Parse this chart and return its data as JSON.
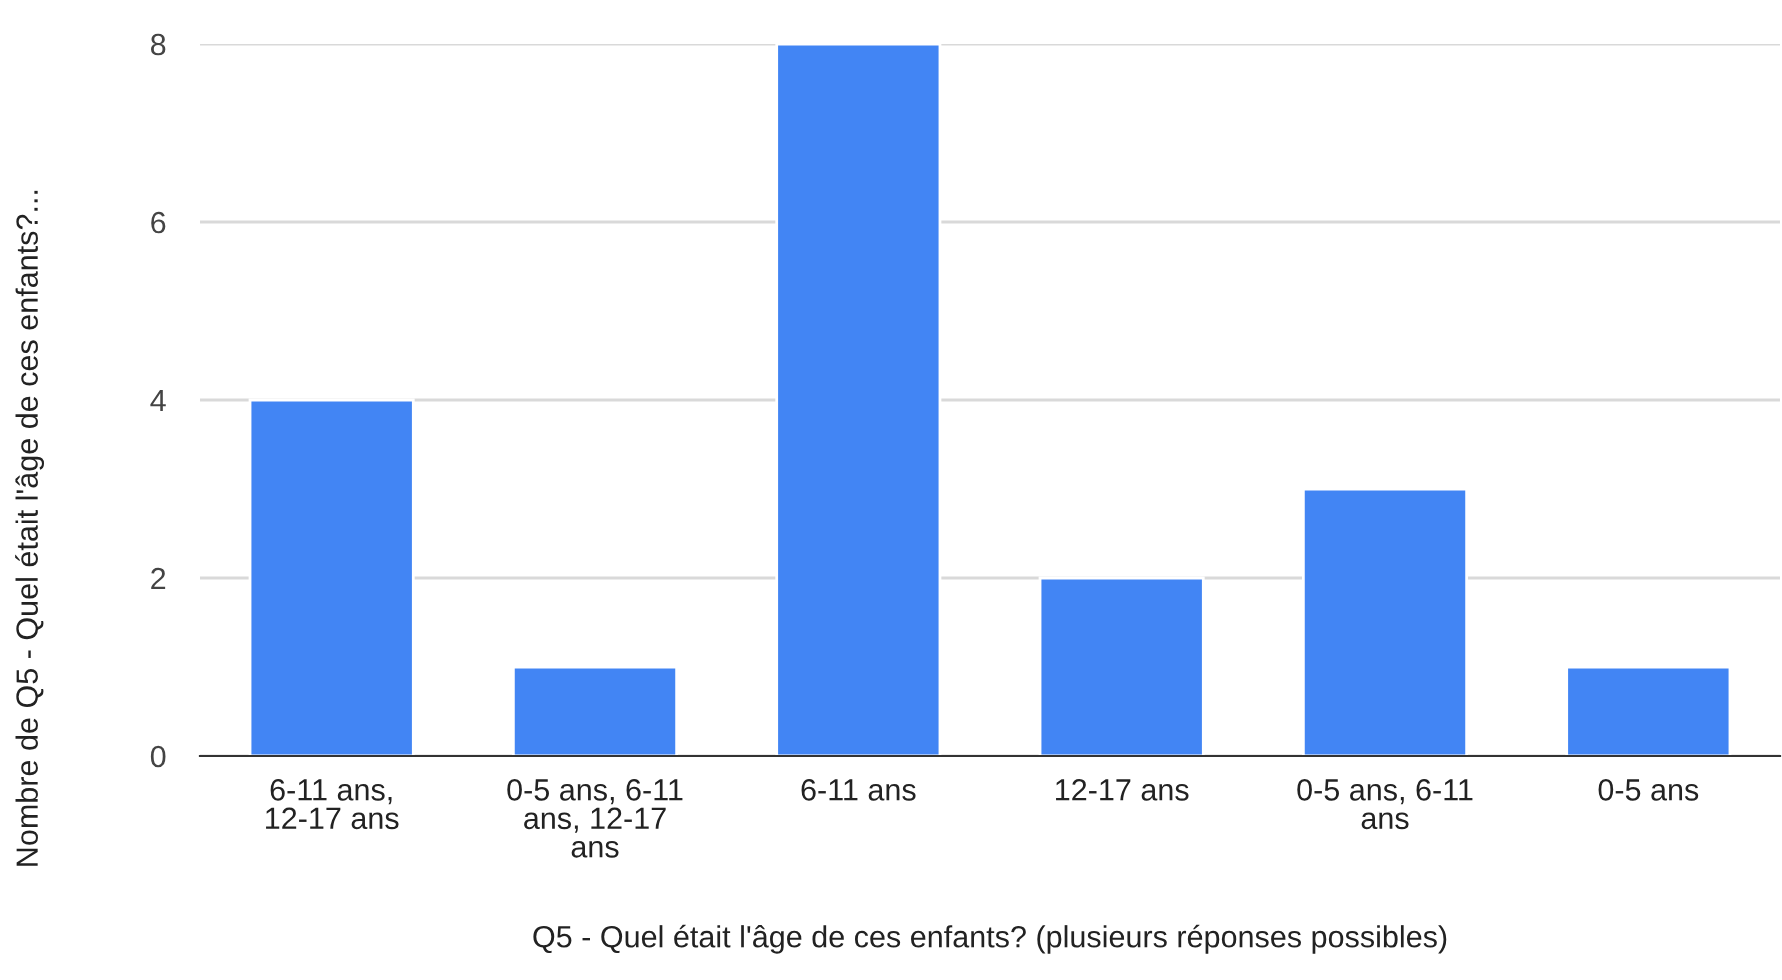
{
  "chart_data": {
    "type": "bar",
    "xlabel": "Q5 - Quel était l'âge de ces enfants? (plusieurs réponses possibles)",
    "ylabel": "Nombre de Q5 - Quel était l'âge de ces enfants?...",
    "categories": [
      "6-11 ans, 12-17 ans",
      "0-5 ans, 6-11 ans, 12-17 ans",
      "6-11 ans",
      "12-17 ans",
      "0-5 ans, 6-11 ans",
      "0-5 ans"
    ],
    "values": [
      4,
      1,
      8,
      2,
      3,
      1
    ],
    "color": "#4285f4",
    "ylim": [
      0,
      8
    ],
    "yticks": [
      0,
      2,
      4,
      6,
      8
    ],
    "grid": "y",
    "legend": false
  }
}
